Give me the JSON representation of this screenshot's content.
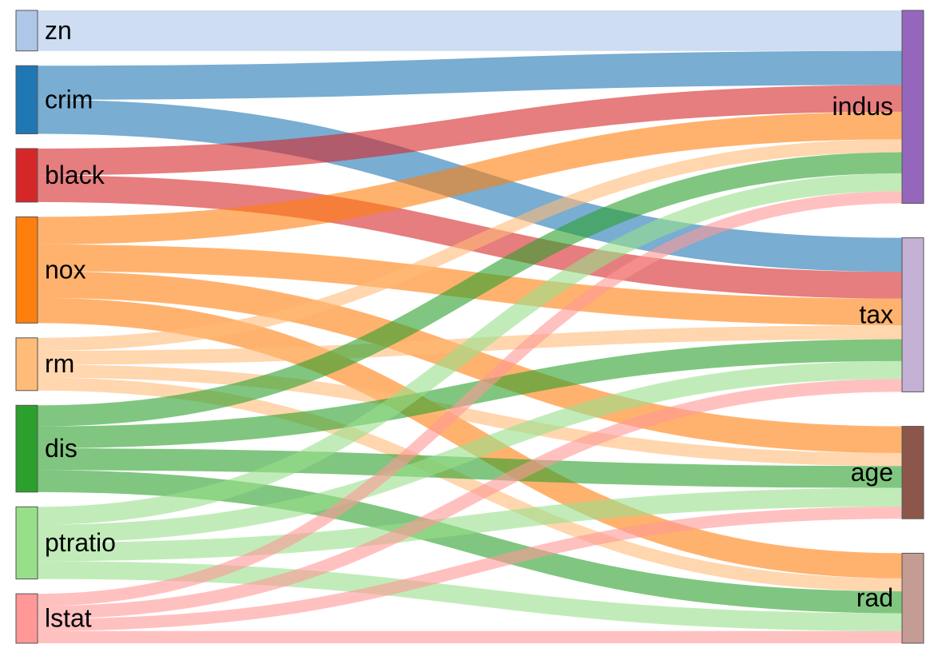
{
  "diagram": {
    "type": "sankey",
    "sources": [
      {
        "id": "zn",
        "label": "zn",
        "color": "#aec7e8"
      },
      {
        "id": "crim",
        "label": "crim",
        "color": "#1f77b4"
      },
      {
        "id": "black",
        "label": "black",
        "color": "#d62728"
      },
      {
        "id": "nox",
        "label": "nox",
        "color": "#ff7f0e"
      },
      {
        "id": "rm",
        "label": "rm",
        "color": "#ffbb78"
      },
      {
        "id": "dis",
        "label": "dis",
        "color": "#2ca02c"
      },
      {
        "id": "ptratio",
        "label": "ptratio",
        "color": "#98df8a"
      },
      {
        "id": "lstat",
        "label": "lstat",
        "color": "#ff9896"
      }
    ],
    "targets": [
      {
        "id": "indus",
        "label": "indus",
        "color": "#9467bd"
      },
      {
        "id": "tax",
        "label": "tax",
        "color": "#c5b0d5"
      },
      {
        "id": "age",
        "label": "age",
        "color": "#8c564b"
      },
      {
        "id": "rad",
        "label": "rad",
        "color": "#c49c94"
      }
    ],
    "links": [
      {
        "source": "zn",
        "target": "indus",
        "value": 50
      },
      {
        "source": "crim",
        "target": "indus",
        "value": 42
      },
      {
        "source": "crim",
        "target": "tax",
        "value": 42
      },
      {
        "source": "black",
        "target": "indus",
        "value": 33
      },
      {
        "source": "black",
        "target": "tax",
        "value": 33
      },
      {
        "source": "nox",
        "target": "indus",
        "value": 34
      },
      {
        "source": "nox",
        "target": "tax",
        "value": 33
      },
      {
        "source": "nox",
        "target": "age",
        "value": 33
      },
      {
        "source": "nox",
        "target": "rad",
        "value": 31
      },
      {
        "source": "rm",
        "target": "indus",
        "value": 16
      },
      {
        "source": "rm",
        "target": "tax",
        "value": 17
      },
      {
        "source": "rm",
        "target": "age",
        "value": 16
      },
      {
        "source": "rm",
        "target": "rad",
        "value": 16
      },
      {
        "source": "dis",
        "target": "indus",
        "value": 26
      },
      {
        "source": "dis",
        "target": "tax",
        "value": 27
      },
      {
        "source": "dis",
        "target": "age",
        "value": 27
      },
      {
        "source": "dis",
        "target": "rad",
        "value": 27
      },
      {
        "source": "ptratio",
        "target": "indus",
        "value": 22
      },
      {
        "source": "ptratio",
        "target": "tax",
        "value": 22
      },
      {
        "source": "ptratio",
        "target": "age",
        "value": 23
      },
      {
        "source": "ptratio",
        "target": "rad",
        "value": 22
      },
      {
        "source": "lstat",
        "target": "indus",
        "value": 15
      },
      {
        "source": "lstat",
        "target": "tax",
        "value": 16
      },
      {
        "source": "lstat",
        "target": "age",
        "value": 15
      },
      {
        "source": "lstat",
        "target": "rad",
        "value": 15
      }
    ]
  }
}
